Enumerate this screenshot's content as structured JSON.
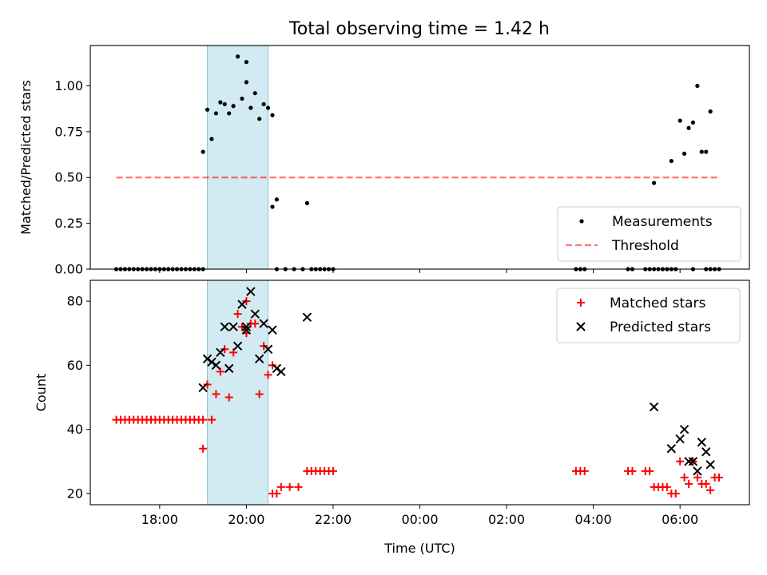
{
  "figure": {
    "title": "Total observing time = 1.42 h"
  },
  "colors": {
    "span": "#add8e6",
    "measurement": "#000000",
    "threshold": "#ff0000",
    "matched": "#ff0000",
    "predicted": "#000000"
  },
  "chart_data": [
    {
      "type": "scatter",
      "title": "Total observing time = 1.42 h",
      "ylabel": "Matched/Predicted stars",
      "xlabel": "",
      "x_unit": "hours since 00:00 UTC",
      "xlim": [
        -7.6,
        7.6
      ],
      "ylim": [
        0,
        1.22
      ],
      "xticks": [
        "18:00",
        "20:00",
        "22:00",
        "00:00",
        "02:00",
        "04:00",
        "06:00"
      ],
      "yticks": [
        "0.00",
        "0.25",
        "0.50",
        "0.75",
        "1.00"
      ],
      "ytick_values": [
        0,
        0.25,
        0.5,
        0.75,
        1.0
      ],
      "legend": {
        "placement": "lower right",
        "entries": [
          "Measurements",
          "Threshold"
        ]
      },
      "shaded_span": {
        "x_start": "19:06",
        "x_end": "20:30"
      },
      "threshold": {
        "y": 0.5,
        "x_start": "17:00",
        "x_end": "06:54"
      },
      "series": [
        {
          "name": "Measurements",
          "points": [
            [
              "17:00",
              0
            ],
            [
              "17:06",
              0
            ],
            [
              "17:12",
              0
            ],
            [
              "17:18",
              0
            ],
            [
              "17:24",
              0
            ],
            [
              "17:30",
              0
            ],
            [
              "17:36",
              0
            ],
            [
              "17:42",
              0
            ],
            [
              "17:48",
              0
            ],
            [
              "17:54",
              0
            ],
            [
              "18:00",
              0
            ],
            [
              "18:06",
              0
            ],
            [
              "18:12",
              0
            ],
            [
              "18:18",
              0
            ],
            [
              "18:24",
              0
            ],
            [
              "18:30",
              0
            ],
            [
              "18:36",
              0
            ],
            [
              "18:42",
              0
            ],
            [
              "18:48",
              0
            ],
            [
              "18:54",
              0
            ],
            [
              "19:00",
              0
            ],
            [
              "19:00",
              0.64
            ],
            [
              "19:06",
              0.87
            ],
            [
              "19:12",
              0.71
            ],
            [
              "19:18",
              0.85
            ],
            [
              "19:24",
              0.91
            ],
            [
              "19:30",
              0.9
            ],
            [
              "19:36",
              0.85
            ],
            [
              "19:42",
              0.89
            ],
            [
              "19:48",
              1.16
            ],
            [
              "19:54",
              0.93
            ],
            [
              "20:00",
              1.02
            ],
            [
              "20:00",
              1.13
            ],
            [
              "20:06",
              0.88
            ],
            [
              "20:12",
              0.96
            ],
            [
              "20:18",
              0.82
            ],
            [
              "20:24",
              0.9
            ],
            [
              "20:30",
              0.88
            ],
            [
              "20:36",
              0.84
            ],
            [
              "20:36",
              0.34
            ],
            [
              "20:42",
              0.38
            ],
            [
              "21:24",
              0.36
            ],
            [
              "20:42",
              0
            ],
            [
              "20:54",
              0
            ],
            [
              "21:06",
              0
            ],
            [
              "21:18",
              0
            ],
            [
              "21:30",
              0
            ],
            [
              "21:36",
              0
            ],
            [
              "21:42",
              0
            ],
            [
              "21:48",
              0
            ],
            [
              "21:54",
              0
            ],
            [
              "22:00",
              0
            ],
            [
              "03:36",
              0
            ],
            [
              "03:42",
              0
            ],
            [
              "03:48",
              0
            ],
            [
              "04:48",
              0
            ],
            [
              "04:54",
              0
            ],
            [
              "05:12",
              0
            ],
            [
              "05:18",
              0
            ],
            [
              "05:24",
              0
            ],
            [
              "05:30",
              0
            ],
            [
              "05:36",
              0
            ],
            [
              "05:42",
              0
            ],
            [
              "05:48",
              0
            ],
            [
              "05:54",
              0
            ],
            [
              "05:24",
              0.47
            ],
            [
              "05:48",
              0.59
            ],
            [
              "06:00",
              0.81
            ],
            [
              "06:06",
              0.63
            ],
            [
              "06:12",
              0.77
            ],
            [
              "06:18",
              0.8
            ],
            [
              "06:24",
              1.0
            ],
            [
              "06:30",
              0.64
            ],
            [
              "06:36",
              0.64
            ],
            [
              "06:42",
              0.86
            ],
            [
              "06:18",
              0
            ],
            [
              "06:36",
              0
            ],
            [
              "06:42",
              0
            ],
            [
              "06:48",
              0
            ],
            [
              "06:54",
              0
            ]
          ]
        },
        {
          "name": "Threshold",
          "points": [
            [
              "17:00",
              0.5
            ],
            [
              "06:54",
              0.5
            ]
          ]
        }
      ]
    },
    {
      "type": "scatter",
      "title": "",
      "ylabel": "Count",
      "xlabel": "Time (UTC)",
      "x_unit": "hours since 00:00 UTC",
      "xlim": [
        -7.6,
        7.6
      ],
      "ylim": [
        16.5,
        86.5
      ],
      "xticks": [
        "18:00",
        "20:00",
        "22:00",
        "00:00",
        "02:00",
        "04:00",
        "06:00"
      ],
      "yticks": [
        "20",
        "40",
        "60",
        "80"
      ],
      "ytick_values": [
        20,
        40,
        60,
        80
      ],
      "legend": {
        "placement": "upper right",
        "entries": [
          "Matched stars",
          "Predicted stars"
        ]
      },
      "shaded_span": {
        "x_start": "19:06",
        "x_end": "20:30"
      },
      "series": [
        {
          "name": "Matched stars",
          "points": [
            [
              "17:00",
              43
            ],
            [
              "17:06",
              43
            ],
            [
              "17:12",
              43
            ],
            [
              "17:18",
              43
            ],
            [
              "17:24",
              43
            ],
            [
              "17:30",
              43
            ],
            [
              "17:36",
              43
            ],
            [
              "17:42",
              43
            ],
            [
              "17:48",
              43
            ],
            [
              "17:54",
              43
            ],
            [
              "18:00",
              43
            ],
            [
              "18:06",
              43
            ],
            [
              "18:12",
              43
            ],
            [
              "18:18",
              43
            ],
            [
              "18:24",
              43
            ],
            [
              "18:30",
              43
            ],
            [
              "18:36",
              43
            ],
            [
              "18:42",
              43
            ],
            [
              "18:48",
              43
            ],
            [
              "18:54",
              43
            ],
            [
              "19:00",
              43
            ],
            [
              "19:00",
              34
            ],
            [
              "19:06",
              54
            ],
            [
              "19:12",
              43
            ],
            [
              "19:18",
              51
            ],
            [
              "19:24",
              58
            ],
            [
              "19:30",
              65
            ],
            [
              "19:36",
              50
            ],
            [
              "19:42",
              64
            ],
            [
              "19:48",
              76
            ],
            [
              "19:54",
              72
            ],
            [
              "20:00",
              70
            ],
            [
              "20:00",
              80
            ],
            [
              "20:06",
              73
            ],
            [
              "20:12",
              73
            ],
            [
              "20:18",
              51
            ],
            [
              "20:24",
              66
            ],
            [
              "20:30",
              57
            ],
            [
              "20:36",
              60
            ],
            [
              "20:36",
              20
            ],
            [
              "20:42",
              20
            ],
            [
              "20:48",
              22
            ],
            [
              "21:00",
              22
            ],
            [
              "21:12",
              22
            ],
            [
              "21:24",
              27
            ],
            [
              "21:30",
              27
            ],
            [
              "21:36",
              27
            ],
            [
              "21:42",
              27
            ],
            [
              "21:48",
              27
            ],
            [
              "21:54",
              27
            ],
            [
              "22:00",
              27
            ],
            [
              "03:36",
              27
            ],
            [
              "03:42",
              27
            ],
            [
              "03:48",
              27
            ],
            [
              "04:48",
              27
            ],
            [
              "04:54",
              27
            ],
            [
              "05:12",
              27
            ],
            [
              "05:18",
              27
            ],
            [
              "05:24",
              22
            ],
            [
              "05:30",
              22
            ],
            [
              "05:36",
              22
            ],
            [
              "05:42",
              22
            ],
            [
              "05:48",
              20
            ],
            [
              "05:54",
              20
            ],
            [
              "06:00",
              30
            ],
            [
              "06:06",
              25
            ],
            [
              "06:12",
              23
            ],
            [
              "06:18",
              30
            ],
            [
              "06:24",
              25
            ],
            [
              "06:30",
              23
            ],
            [
              "06:36",
              23
            ],
            [
              "06:42",
              21
            ],
            [
              "06:48",
              25
            ],
            [
              "06:54",
              25
            ]
          ]
        },
        {
          "name": "Predicted stars",
          "points": [
            [
              "19:00",
              53
            ],
            [
              "19:06",
              62
            ],
            [
              "19:12",
              61
            ],
            [
              "19:18",
              60
            ],
            [
              "19:24",
              64
            ],
            [
              "19:30",
              72
            ],
            [
              "19:36",
              59
            ],
            [
              "19:42",
              72
            ],
            [
              "19:48",
              66
            ],
            [
              "19:54",
              79
            ],
            [
              "20:00",
              72
            ],
            [
              "20:00",
              71
            ],
            [
              "20:06",
              83
            ],
            [
              "20:12",
              76
            ],
            [
              "20:18",
              62
            ],
            [
              "20:24",
              73
            ],
            [
              "20:30",
              65
            ],
            [
              "20:36",
              71
            ],
            [
              "20:42",
              59
            ],
            [
              "20:48",
              58
            ],
            [
              "21:24",
              75
            ],
            [
              "05:24",
              47
            ],
            [
              "05:48",
              34
            ],
            [
              "06:00",
              37
            ],
            [
              "06:06",
              40
            ],
            [
              "06:12",
              30
            ],
            [
              "06:18",
              30
            ],
            [
              "06:24",
              27
            ],
            [
              "06:30",
              36
            ],
            [
              "06:36",
              33
            ],
            [
              "06:42",
              29
            ]
          ]
        }
      ]
    }
  ]
}
